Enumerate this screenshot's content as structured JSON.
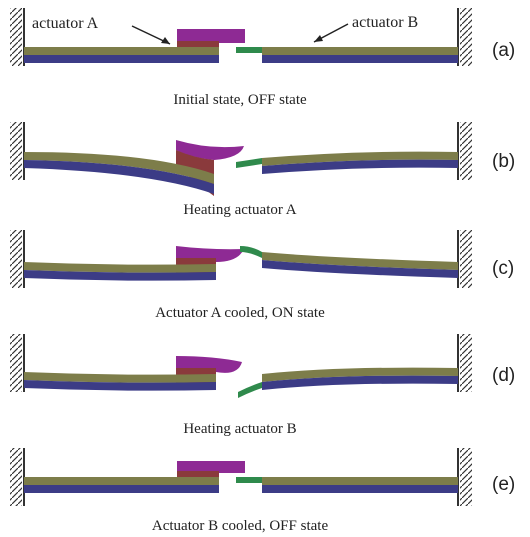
{
  "annotations": {
    "actuator_a": "actuator A",
    "actuator_b": "actuator B"
  },
  "panels": [
    {
      "label": "(a)",
      "caption": "Initial state, OFF state"
    },
    {
      "label": "(b)",
      "caption": "Heating actuator A"
    },
    {
      "label": "(c)",
      "caption": "Actuator A cooled, ON state"
    },
    {
      "label": "(d)",
      "caption": "Heating actuator B"
    },
    {
      "label": "(e)",
      "caption": "Actuator B cooled, OFF state"
    }
  ],
  "colors": {
    "layer_top": "#7d7d4a",
    "layer_bottom": "#3c3c86",
    "pad_a": "#8e2a94",
    "pad_a_base": "#8a3a3c",
    "tip_b": "#2f8a4c",
    "wall": "#333333"
  }
}
